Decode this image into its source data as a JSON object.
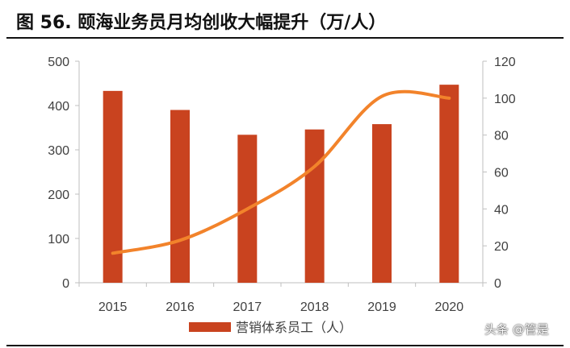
{
  "figure": {
    "title": "图 56. 颐海业务员月均创收大幅提升（万/人）",
    "watermark": "头条 @管是"
  },
  "colors": {
    "bar": "#C9431F",
    "line": "#F2832B",
    "axis": "#BFBFBF",
    "text": "#404040"
  },
  "chart_data": {
    "type": "bar+line",
    "categories": [
      "2015",
      "2016",
      "2017",
      "2018",
      "2019",
      "2020"
    ],
    "series": [
      {
        "name": "营销体系员工（人）",
        "type": "bar",
        "axis": "left",
        "values": [
          433,
          390,
          334,
          346,
          358,
          447
        ]
      },
      {
        "name": "",
        "type": "line",
        "axis": "right",
        "smooth": true,
        "values": [
          16,
          23,
          40,
          63,
          101,
          100
        ]
      }
    ],
    "y_left": {
      "min": 0,
      "max": 500,
      "ticks": [
        0,
        100,
        200,
        300,
        400,
        500
      ]
    },
    "y_right": {
      "min": 0,
      "max": 120,
      "ticks": [
        0,
        20,
        40,
        60,
        80,
        100,
        120
      ]
    },
    "grid": false,
    "legend_position": "bottom"
  }
}
